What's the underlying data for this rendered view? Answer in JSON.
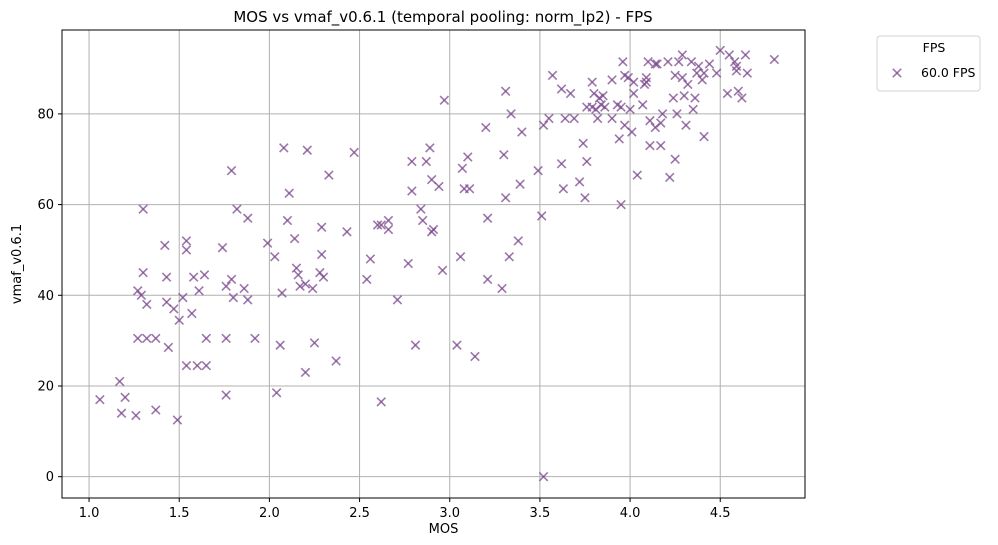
{
  "chart_data": {
    "type": "scatter",
    "title": "MOS vs vmaf_v0.6.1 (temporal pooling: norm_lp2) - FPS",
    "xlabel": "MOS",
    "ylabel": "vmaf_v0.6.1",
    "xlim": [
      0.85,
      4.97
    ],
    "ylim": [
      -4.7,
      98.5
    ],
    "xticks": [
      1.0,
      1.5,
      2.0,
      2.5,
      3.0,
      3.5,
      4.0,
      4.5
    ],
    "xtick_labels": [
      "1.0",
      "1.5",
      "2.0",
      "2.5",
      "3.0",
      "3.5",
      "4.0",
      "4.5"
    ],
    "yticks": [
      0,
      20,
      40,
      60,
      80
    ],
    "ytick_labels": [
      "0",
      "20",
      "40",
      "60",
      "80"
    ],
    "grid": true,
    "legend": {
      "title": "FPS",
      "placement": "outside-top-right",
      "entries": [
        "60.0 FPS"
      ]
    },
    "series": [
      {
        "name": "60.0 FPS",
        "marker": "x",
        "color": "#7b4a8e",
        "points": [
          [
            1.06,
            17
          ],
          [
            1.17,
            21
          ],
          [
            1.18,
            14
          ],
          [
            1.2,
            17.5
          ],
          [
            1.26,
            13.5
          ],
          [
            1.27,
            41
          ],
          [
            1.27,
            30.5
          ],
          [
            1.29,
            40
          ],
          [
            1.3,
            59
          ],
          [
            1.3,
            45
          ],
          [
            1.32,
            38
          ],
          [
            1.32,
            30.5
          ],
          [
            1.37,
            30.5
          ],
          [
            1.37,
            14.7
          ],
          [
            1.42,
            51
          ],
          [
            1.43,
            38.5
          ],
          [
            1.43,
            44
          ],
          [
            1.44,
            28.5
          ],
          [
            1.47,
            37
          ],
          [
            1.49,
            12.5
          ],
          [
            1.5,
            34.5
          ],
          [
            1.52,
            39.5
          ],
          [
            1.54,
            52
          ],
          [
            1.54,
            50
          ],
          [
            1.54,
            24.5
          ],
          [
            1.57,
            36
          ],
          [
            1.58,
            44
          ],
          [
            1.6,
            24.5
          ],
          [
            1.61,
            41
          ],
          [
            1.64,
            44.5
          ],
          [
            1.65,
            30.5
          ],
          [
            1.65,
            24.5
          ],
          [
            1.74,
            50.5
          ],
          [
            1.76,
            42
          ],
          [
            1.76,
            30.5
          ],
          [
            1.76,
            18
          ],
          [
            1.79,
            67.5
          ],
          [
            1.79,
            43.5
          ],
          [
            1.8,
            39.5
          ],
          [
            1.82,
            59
          ],
          [
            1.86,
            41.5
          ],
          [
            1.88,
            57
          ],
          [
            1.88,
            39
          ],
          [
            1.92,
            30.5
          ],
          [
            1.99,
            51.5
          ],
          [
            2.03,
            48.5
          ],
          [
            2.04,
            18.5
          ],
          [
            2.06,
            29
          ],
          [
            2.07,
            40.5
          ],
          [
            2.08,
            72.5
          ],
          [
            2.1,
            56.5
          ],
          [
            2.11,
            62.5
          ],
          [
            2.14,
            52.5
          ],
          [
            2.15,
            46
          ],
          [
            2.16,
            44.5
          ],
          [
            2.17,
            42
          ],
          [
            2.2,
            23
          ],
          [
            2.2,
            42.5
          ],
          [
            2.21,
            72
          ],
          [
            2.24,
            41.5
          ],
          [
            2.25,
            29.5
          ],
          [
            2.28,
            45
          ],
          [
            2.29,
            55
          ],
          [
            2.29,
            49
          ],
          [
            2.3,
            44
          ],
          [
            2.33,
            66.5
          ],
          [
            2.37,
            25.5
          ],
          [
            2.43,
            54
          ],
          [
            2.47,
            71.5
          ],
          [
            2.54,
            43.5
          ],
          [
            2.56,
            48
          ],
          [
            2.6,
            55.5
          ],
          [
            2.62,
            16.5
          ],
          [
            2.62,
            55.5
          ],
          [
            2.66,
            54.5
          ],
          [
            2.66,
            56.5
          ],
          [
            2.71,
            39
          ],
          [
            2.77,
            47
          ],
          [
            2.79,
            63
          ],
          [
            2.79,
            69.5
          ],
          [
            2.81,
            29
          ],
          [
            2.84,
            59
          ],
          [
            2.85,
            56.5
          ],
          [
            2.87,
            69.5
          ],
          [
            2.89,
            72.5
          ],
          [
            2.9,
            65.5
          ],
          [
            2.9,
            54
          ],
          [
            2.91,
            54.5
          ],
          [
            2.94,
            64
          ],
          [
            2.96,
            45.5
          ],
          [
            2.97,
            83
          ],
          [
            3.04,
            29
          ],
          [
            3.06,
            48.5
          ],
          [
            3.07,
            68
          ],
          [
            3.08,
            63.5
          ],
          [
            3.1,
            70.5
          ],
          [
            3.11,
            63.5
          ],
          [
            3.14,
            26.5
          ],
          [
            3.2,
            77
          ],
          [
            3.21,
            57
          ],
          [
            3.21,
            43.5
          ],
          [
            3.29,
            41.5
          ],
          [
            3.3,
            71
          ],
          [
            3.31,
            61.5
          ],
          [
            3.31,
            85
          ],
          [
            3.33,
            48.5
          ],
          [
            3.34,
            80
          ],
          [
            3.38,
            52
          ],
          [
            3.39,
            64.5
          ],
          [
            3.4,
            76
          ],
          [
            3.49,
            67.5
          ],
          [
            3.51,
            57.5
          ],
          [
            3.52,
            0
          ],
          [
            3.52,
            77.5
          ],
          [
            3.55,
            79
          ],
          [
            3.57,
            88.5
          ],
          [
            3.62,
            69
          ],
          [
            3.62,
            85.5
          ],
          [
            3.63,
            63.5
          ],
          [
            3.64,
            79
          ],
          [
            3.67,
            84.5
          ],
          [
            3.69,
            79
          ],
          [
            3.72,
            65
          ],
          [
            3.74,
            73.5
          ],
          [
            3.75,
            61.5
          ],
          [
            3.76,
            69.5
          ],
          [
            3.76,
            81.5
          ],
          [
            3.79,
            81.5
          ],
          [
            3.79,
            87
          ],
          [
            3.8,
            84.5
          ],
          [
            3.81,
            81
          ],
          [
            3.82,
            79
          ],
          [
            3.83,
            83.5
          ],
          [
            3.84,
            82
          ],
          [
            3.85,
            84
          ],
          [
            3.86,
            81.5
          ],
          [
            3.9,
            87.5
          ],
          [
            3.9,
            79
          ],
          [
            3.93,
            82
          ],
          [
            3.94,
            74.5
          ],
          [
            3.95,
            60
          ],
          [
            3.95,
            81.5
          ],
          [
            3.96,
            91.5
          ],
          [
            3.97,
            77.5
          ],
          [
            3.97,
            88.5
          ],
          [
            3.99,
            88
          ],
          [
            4.0,
            81
          ],
          [
            4.01,
            76
          ],
          [
            4.02,
            84.5
          ],
          [
            4.02,
            87
          ],
          [
            4.04,
            66.5
          ],
          [
            4.07,
            82
          ],
          [
            4.08,
            86.5
          ],
          [
            4.09,
            87
          ],
          [
            4.09,
            88
          ],
          [
            4.1,
            91.5
          ],
          [
            4.11,
            73
          ],
          [
            4.11,
            78.5
          ],
          [
            4.14,
            91
          ],
          [
            4.14,
            77
          ],
          [
            4.15,
            91
          ],
          [
            4.17,
            73
          ],
          [
            4.17,
            78
          ],
          [
            4.18,
            80
          ],
          [
            4.21,
            91.5
          ],
          [
            4.22,
            66
          ],
          [
            4.24,
            83.5
          ],
          [
            4.25,
            70
          ],
          [
            4.25,
            88.5
          ],
          [
            4.26,
            80
          ],
          [
            4.27,
            91.5
          ],
          [
            4.29,
            93
          ],
          [
            4.29,
            88
          ],
          [
            4.3,
            84
          ],
          [
            4.31,
            77.5
          ],
          [
            4.32,
            86.5
          ],
          [
            4.34,
            91.5
          ],
          [
            4.35,
            81
          ],
          [
            4.36,
            83.5
          ],
          [
            4.37,
            89
          ],
          [
            4.38,
            90.5
          ],
          [
            4.4,
            87.5
          ],
          [
            4.41,
            75
          ],
          [
            4.41,
            89
          ],
          [
            4.44,
            91
          ],
          [
            4.48,
            89
          ],
          [
            4.5,
            94
          ],
          [
            4.54,
            84.5
          ],
          [
            4.55,
            93
          ],
          [
            4.58,
            91.5
          ],
          [
            4.59,
            90.5
          ],
          [
            4.59,
            89.5
          ],
          [
            4.6,
            85
          ],
          [
            4.62,
            83.5
          ],
          [
            4.64,
            93
          ],
          [
            4.65,
            89
          ],
          [
            4.8,
            92
          ]
        ]
      }
    ]
  }
}
